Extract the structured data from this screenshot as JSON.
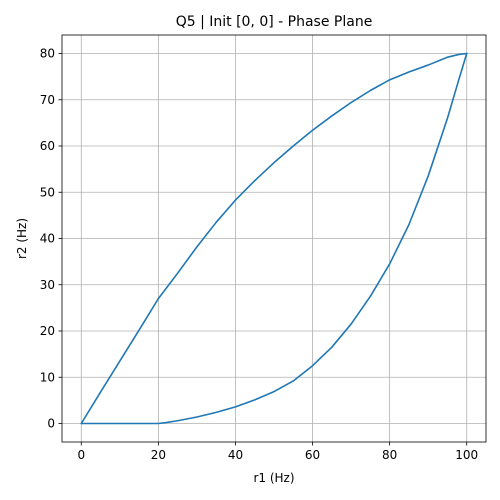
{
  "chart_data": {
    "type": "line",
    "title": "Q5 | Init [0, 0] - Phase Plane",
    "xlabel": "r1 (Hz)",
    "ylabel": "r2 (Hz)",
    "xlim": [
      -5,
      105
    ],
    "ylim": [
      -4,
      84
    ],
    "xticks": [
      0,
      20,
      40,
      60,
      80,
      100
    ],
    "yticks": [
      0,
      10,
      20,
      30,
      40,
      50,
      60,
      70,
      80
    ],
    "xtick_labels": [
      "0",
      "20",
      "40",
      "60",
      "80",
      "100"
    ],
    "ytick_labels": [
      "0",
      "10",
      "20",
      "30",
      "40",
      "50",
      "60",
      "70",
      "80"
    ],
    "grid": true,
    "legend": "none",
    "colors": {
      "series": "#1f77b4",
      "grid": "#b0b0b0",
      "axis": "#000000"
    },
    "series": [
      {
        "x": [
          0,
          20,
          22,
          25,
          30,
          35,
          40,
          45,
          50,
          55,
          60,
          65,
          70,
          75,
          80,
          85,
          90,
          95,
          98,
          100
        ],
        "y": [
          0,
          0,
          0.2,
          0.6,
          1.4,
          2.4,
          3.6,
          5.1,
          6.9,
          9.2,
          12.5,
          16.5,
          21.5,
          27.5,
          34.5,
          43.0,
          53.5,
          66.0,
          74.5,
          80
        ]
      },
      {
        "x": [
          100,
          98,
          95,
          90,
          85,
          80,
          75,
          70,
          65,
          60,
          55,
          50,
          45,
          40,
          35,
          30,
          25,
          20,
          15,
          10,
          5,
          0
        ],
        "y": [
          80,
          79.8,
          79.2,
          77.5,
          76.0,
          74.3,
          72.0,
          69.4,
          66.5,
          63.4,
          60.0,
          56.4,
          52.5,
          48.3,
          43.5,
          38.2,
          32.5,
          27.0,
          20.2,
          13.5,
          6.8,
          0
        ]
      }
    ]
  }
}
